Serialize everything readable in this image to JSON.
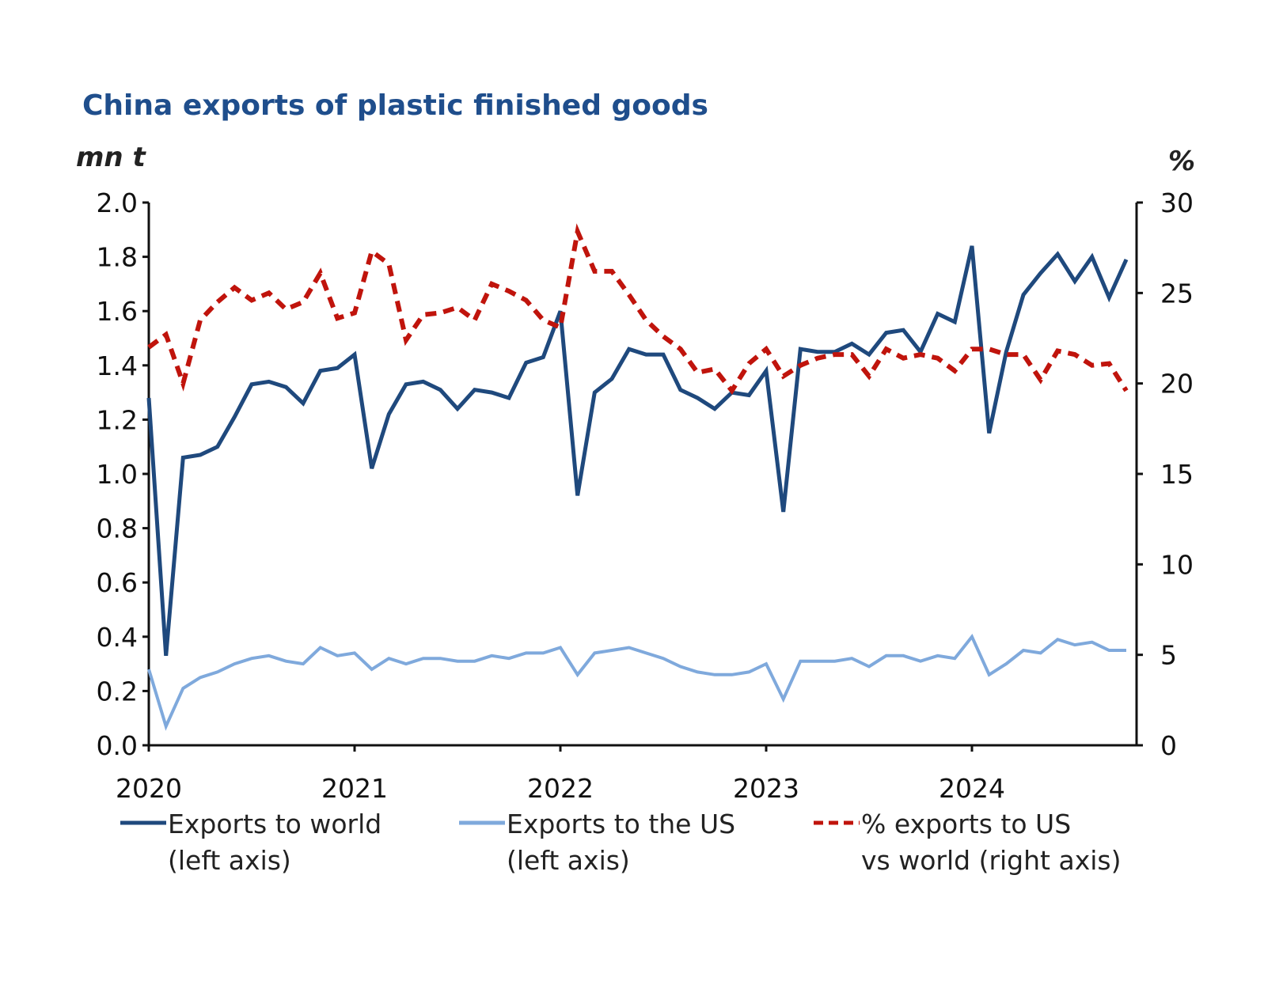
{
  "chart_data": {
    "type": "line",
    "title": "China exports of plastic finished goods",
    "ylabel_left": "mn t",
    "ylabel_right": "%",
    "ylim_left": [
      0,
      2.0
    ],
    "yticks_left": [
      "0.0",
      "0.2",
      "0.4",
      "0.6",
      "0.8",
      "1.0",
      "1.2",
      "1.4",
      "1.6",
      "1.8",
      "2.0"
    ],
    "ylim_right": [
      0,
      30
    ],
    "yticks_right": [
      "0",
      "5",
      "10",
      "15",
      "20",
      "25",
      "30"
    ],
    "xticks": [
      "2020",
      "2021",
      "2022",
      "2023",
      "2024"
    ],
    "x_start": "2020-01",
    "x_frequency": "monthly",
    "grid": false,
    "legend_position": "bottom",
    "colors": {
      "world": "#1f497d",
      "us": "#7fa9dc",
      "pct": "#c0140c",
      "title": "#1f4e8c"
    },
    "series": [
      {
        "name": "Exports to world",
        "name_line2": "(left axis)",
        "axis": "left",
        "style": "solid",
        "values": [
          1.28,
          0.33,
          1.06,
          1.07,
          1.1,
          1.21,
          1.33,
          1.34,
          1.32,
          1.26,
          1.38,
          1.39,
          1.44,
          1.02,
          1.22,
          1.33,
          1.34,
          1.31,
          1.24,
          1.31,
          1.3,
          1.28,
          1.41,
          1.43,
          1.6,
          0.92,
          1.3,
          1.35,
          1.46,
          1.44,
          1.44,
          1.31,
          1.28,
          1.24,
          1.3,
          1.29,
          1.38,
          0.86,
          1.46,
          1.45,
          1.45,
          1.48,
          1.44,
          1.52,
          1.53,
          1.45,
          1.59,
          1.56,
          1.84,
          1.15,
          1.45,
          1.66,
          1.74,
          1.81,
          1.71,
          1.8,
          1.65,
          1.79
        ]
      },
      {
        "name": "Exports to the US",
        "name_line2": "(left axis)",
        "axis": "left",
        "style": "solid",
        "values": [
          0.28,
          0.07,
          0.21,
          0.25,
          0.27,
          0.3,
          0.32,
          0.33,
          0.31,
          0.3,
          0.36,
          0.33,
          0.34,
          0.28,
          0.32,
          0.3,
          0.32,
          0.32,
          0.31,
          0.31,
          0.33,
          0.32,
          0.34,
          0.34,
          0.36,
          0.26,
          0.34,
          0.35,
          0.36,
          0.34,
          0.32,
          0.29,
          0.27,
          0.26,
          0.26,
          0.27,
          0.3,
          0.17,
          0.31,
          0.31,
          0.31,
          0.32,
          0.29,
          0.33,
          0.33,
          0.31,
          0.33,
          0.32,
          0.4,
          0.26,
          0.3,
          0.35,
          0.34,
          0.39,
          0.37,
          0.38,
          0.35,
          0.35
        ]
      },
      {
        "name": "% exports to US",
        "name_line2": "vs world (right axis)",
        "axis": "right",
        "style": "dashed",
        "values": [
          22.0,
          22.7,
          20.0,
          23.5,
          24.5,
          25.3,
          24.6,
          25.0,
          24.1,
          24.5,
          26.1,
          23.6,
          23.9,
          27.3,
          26.6,
          22.4,
          23.8,
          23.9,
          24.2,
          23.5,
          25.5,
          25.1,
          24.6,
          23.5,
          23.1,
          28.4,
          26.2,
          26.2,
          24.9,
          23.5,
          22.6,
          21.9,
          20.6,
          20.8,
          19.6,
          21.1,
          21.9,
          20.4,
          21.0,
          21.4,
          21.6,
          21.6,
          20.4,
          21.9,
          21.4,
          21.6,
          21.4,
          20.7,
          21.9,
          21.9,
          21.6,
          21.6,
          20.2,
          21.8,
          21.6,
          21.0,
          21.1,
          19.6
        ]
      }
    ]
  }
}
